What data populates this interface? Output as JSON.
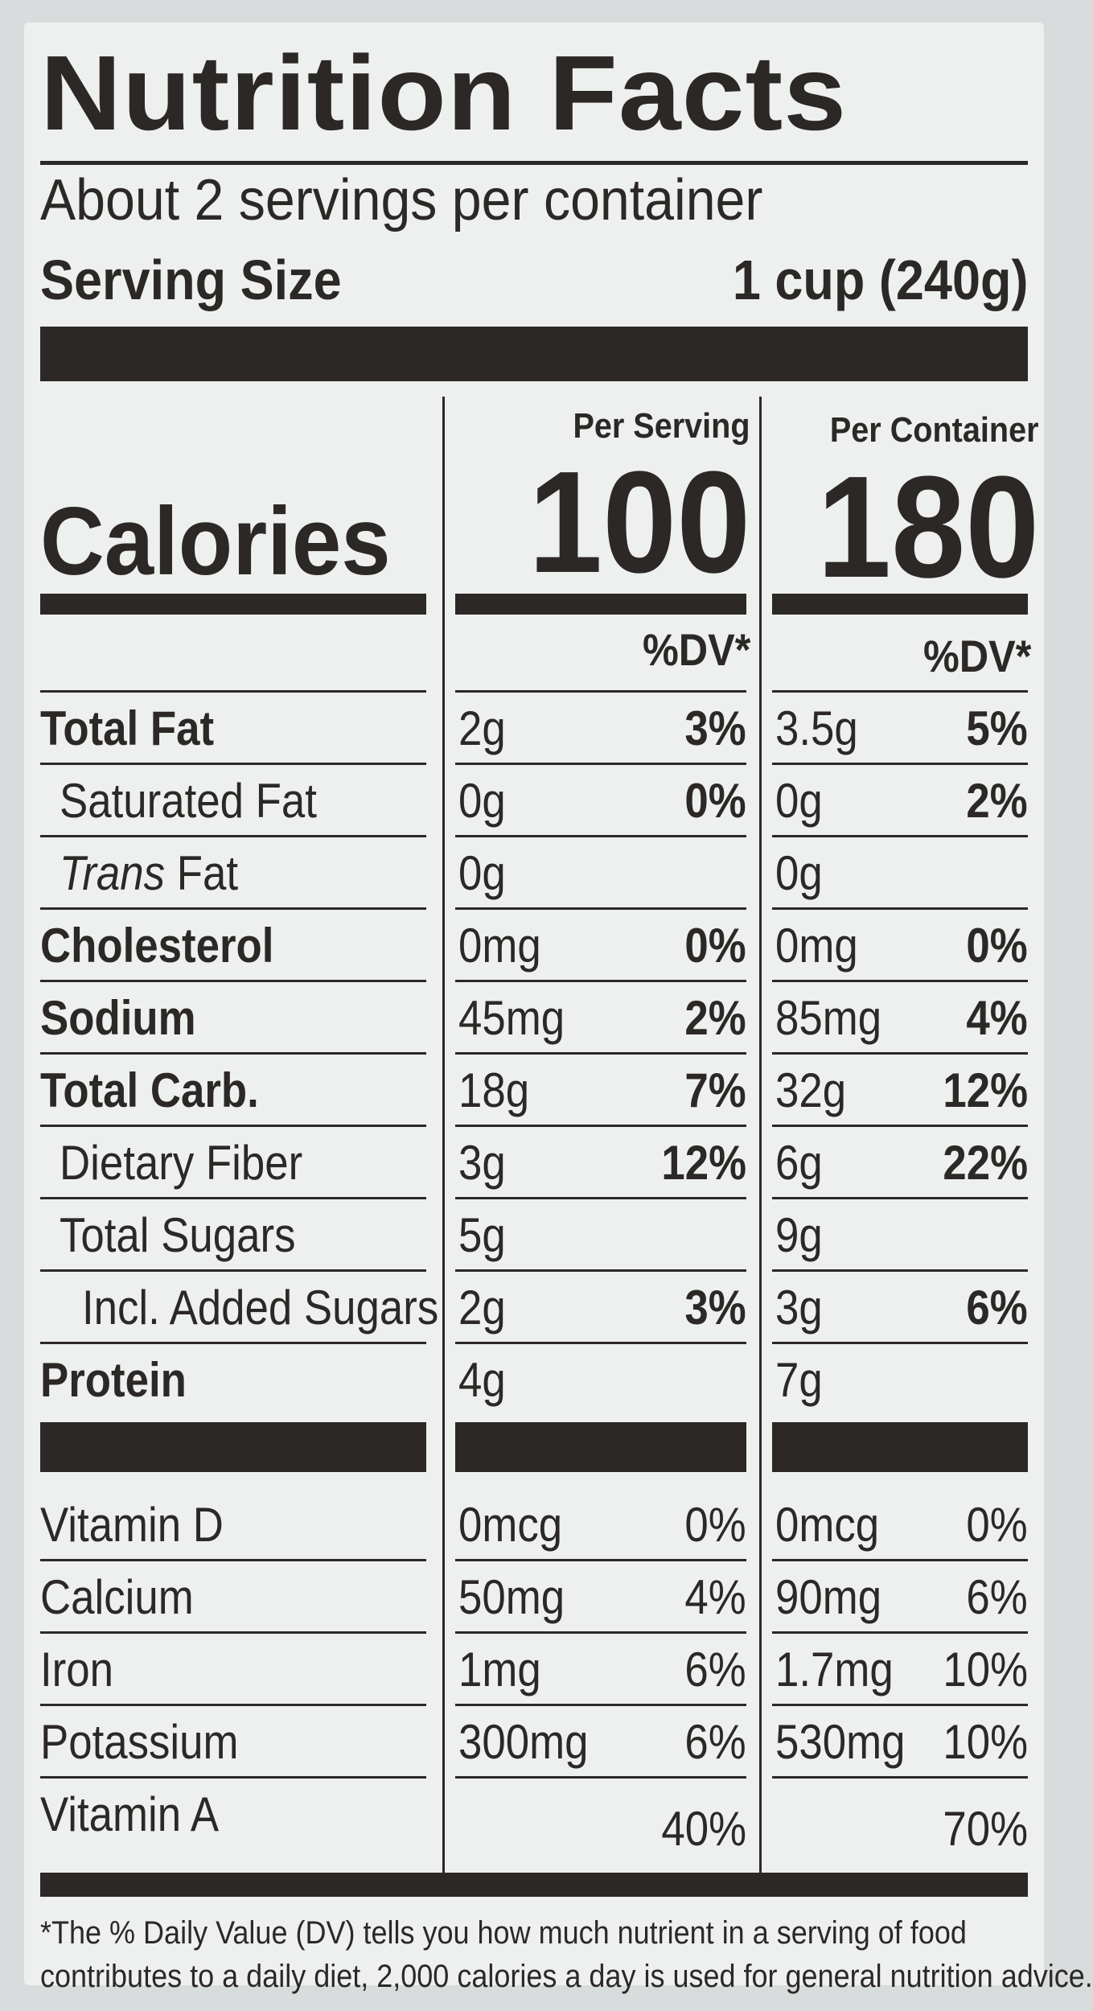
{
  "title": "Nutrition Facts",
  "servings_per_container": "About 2 servings per container",
  "serving_size": {
    "label": "Serving Size",
    "value": "1 cup (240g)"
  },
  "columns": {
    "per_serving": {
      "label": "Per Serving",
      "calories": "100",
      "dv": "%DV*"
    },
    "per_container": {
      "label": "Per Container",
      "calories": "180",
      "dv": "%DV*"
    }
  },
  "calories_label": "Calories",
  "nutrients": [
    {
      "name": "Total Fat",
      "bold": true,
      "indent": 0,
      "serving_amt": "2g",
      "serving_dv": "3%",
      "container_amt": "3.5g",
      "container_dv": "5%"
    },
    {
      "name": "Saturated Fat",
      "bold": false,
      "indent": 1,
      "serving_amt": "0g",
      "serving_dv": "0%",
      "container_amt": "0g",
      "container_dv": "2%"
    },
    {
      "name_italic": "Trans",
      "name": " Fat",
      "bold": false,
      "indent": 1,
      "serving_amt": "0g",
      "serving_dv": "",
      "container_amt": "0g",
      "container_dv": ""
    },
    {
      "name": "Cholesterol",
      "bold": true,
      "indent": 0,
      "serving_amt": "0mg",
      "serving_dv": "0%",
      "container_amt": "0mg",
      "container_dv": "0%"
    },
    {
      "name": "Sodium",
      "bold": true,
      "indent": 0,
      "serving_amt": "45mg",
      "serving_dv": "2%",
      "container_amt": "85mg",
      "container_dv": "4%"
    },
    {
      "name": "Total Carb.",
      "bold": true,
      "indent": 0,
      "serving_amt": "18g",
      "serving_dv": "7%",
      "container_amt": "32g",
      "container_dv": "12%"
    },
    {
      "name": "Dietary Fiber",
      "bold": false,
      "indent": 1,
      "serving_amt": "3g",
      "serving_dv": "12%",
      "container_amt": "6g",
      "container_dv": "22%"
    },
    {
      "name": "Total Sugars",
      "bold": false,
      "indent": 1,
      "serving_amt": "5g",
      "serving_dv": "",
      "container_amt": "9g",
      "container_dv": ""
    },
    {
      "name": "Incl. Added Sugars",
      "bold": false,
      "indent": 2,
      "serving_amt": "2g",
      "serving_dv": "3%",
      "container_amt": "3g",
      "container_dv": "6%"
    },
    {
      "name": "Protein",
      "bold": true,
      "indent": 0,
      "serving_amt": "4g",
      "serving_dv": "",
      "container_amt": "7g",
      "container_dv": ""
    }
  ],
  "vitamins": [
    {
      "name": "Vitamin D",
      "serving_amt": "0mcg",
      "serving_dv": "0%",
      "container_amt": "0mcg",
      "container_dv": "0%"
    },
    {
      "name": "Calcium",
      "serving_amt": "50mg",
      "serving_dv": "4%",
      "container_amt": "90mg",
      "container_dv": "6%"
    },
    {
      "name": "Iron",
      "serving_amt": "1mg",
      "serving_dv": "6%",
      "container_amt": "1.7mg",
      "container_dv": "10%"
    },
    {
      "name": "Potassium",
      "serving_amt": "300mg",
      "serving_dv": "6%",
      "container_amt": "530mg",
      "container_dv": "10%"
    },
    {
      "name": "Vitamin A",
      "serving_amt": "",
      "serving_dv": "40%",
      "container_amt": "",
      "container_dv": "70%"
    }
  ],
  "footnote": [
    "*The % Daily Value (DV) tells you how much nutrient in a serving of food",
    "contributes to a daily diet, 2,000 calories a day is used for general nutrition advice."
  ],
  "colors": {
    "ink": "#2b2826",
    "paper": "#eef0f0",
    "background": "#d9dcdd"
  }
}
